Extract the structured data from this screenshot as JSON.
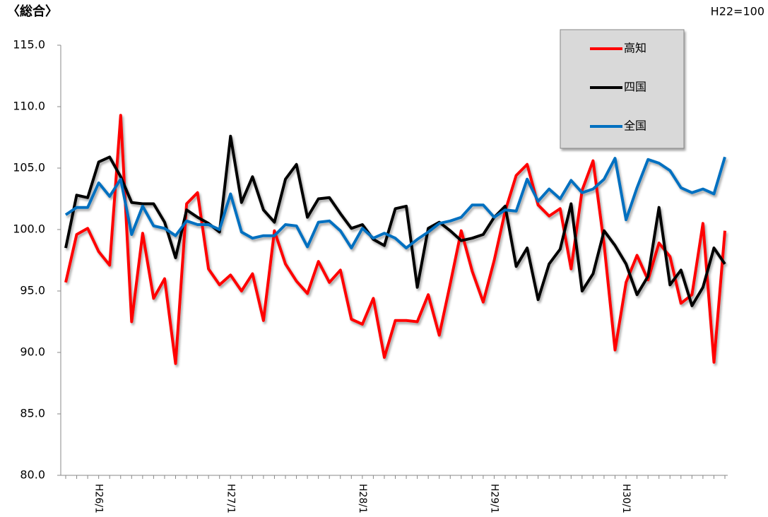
{
  "chart_data": {
    "type": "line",
    "title": "〈総合〉",
    "subtitle": "H22=100",
    "categories": [
      null,
      null,
      null,
      "H26/1",
      null,
      null,
      null,
      null,
      null,
      null,
      null,
      null,
      null,
      null,
      null,
      "H27/1",
      null,
      null,
      null,
      null,
      null,
      null,
      null,
      null,
      null,
      null,
      null,
      "H28/1",
      null,
      null,
      null,
      null,
      null,
      null,
      null,
      null,
      null,
      null,
      null,
      "H29/1",
      null,
      null,
      null,
      null,
      null,
      null,
      null,
      null,
      null,
      null,
      null,
      "H30/1",
      null,
      null,
      null,
      null,
      null,
      null,
      null,
      null,
      null
    ],
    "series": [
      {
        "name": "高知",
        "color": "#ff0000",
        "values": [
          95.7,
          99.6,
          100.1,
          98.2,
          97.1,
          109.3,
          92.5,
          99.7,
          94.4,
          96.0,
          89.1,
          102.1,
          103.0,
          96.8,
          95.5,
          96.3,
          95.0,
          96.4,
          92.6,
          99.9,
          97.2,
          95.8,
          94.8,
          97.4,
          95.7,
          96.7,
          92.7,
          92.3,
          94.4,
          89.6,
          92.6,
          92.6,
          92.5,
          94.7,
          91.4,
          95.6,
          99.9,
          96.6,
          94.1,
          97.5,
          101.5,
          104.4,
          105.3,
          102.0,
          101.1,
          101.7,
          96.8,
          103.2,
          105.6,
          98.8,
          90.2,
          95.7,
          97.9,
          95.9,
          98.9,
          97.8,
          94.0,
          94.7,
          100.5,
          89.2,
          99.9
        ]
      },
      {
        "name": "四国",
        "color": "#000000",
        "values": [
          98.5,
          102.8,
          102.6,
          105.5,
          105.9,
          104.3,
          102.2,
          102.1,
          102.1,
          100.6,
          97.7,
          101.6,
          101.0,
          100.5,
          99.8,
          107.6,
          102.2,
          104.3,
          101.6,
          100.6,
          104.1,
          105.3,
          101.0,
          102.5,
          102.6,
          101.3,
          100.1,
          100.4,
          99.2,
          98.7,
          101.7,
          101.9,
          95.3,
          100.1,
          100.6,
          99.9,
          99.1,
          99.3,
          99.6,
          101.0,
          101.9,
          97.0,
          98.5,
          94.3,
          97.2,
          98.4,
          102.1,
          95.0,
          96.4,
          99.9,
          98.7,
          97.2,
          94.7,
          96.2,
          101.8,
          95.5,
          96.7,
          93.8,
          95.3,
          98.5,
          97.2
        ]
      },
      {
        "name": "全国",
        "color": "#0070c0",
        "values": [
          101.2,
          101.8,
          101.8,
          103.8,
          102.7,
          104.1,
          99.6,
          101.9,
          100.3,
          100.1,
          99.5,
          100.7,
          100.4,
          100.4,
          100.0,
          102.9,
          99.8,
          99.3,
          99.5,
          99.5,
          100.4,
          100.3,
          98.6,
          100.6,
          100.7,
          99.9,
          98.5,
          100.1,
          99.3,
          99.7,
          99.3,
          98.5,
          99.2,
          99.8,
          100.5,
          100.7,
          101.0,
          102.0,
          102.0,
          101.0,
          101.6,
          101.5,
          104.1,
          102.3,
          103.3,
          102.5,
          104.0,
          103.0,
          103.3,
          104.1,
          105.8,
          100.8,
          103.4,
          105.7,
          105.4,
          104.8,
          103.4,
          103.0,
          103.3,
          102.9,
          105.9
        ]
      }
    ],
    "ylim": [
      80,
      115
    ],
    "yticks": [
      {
        "value": 80,
        "label": "80.0"
      },
      {
        "value": 85,
        "label": "85.0"
      },
      {
        "value": 90,
        "label": "90.0"
      },
      {
        "value": 95,
        "label": "95.0"
      },
      {
        "value": 100,
        "label": "100.0"
      },
      {
        "value": 105,
        "label": "105.0"
      },
      {
        "value": 110,
        "label": "110.0"
      },
      {
        "value": 115,
        "label": "115.0"
      }
    ],
    "grid": false,
    "legend": "upper right"
  }
}
